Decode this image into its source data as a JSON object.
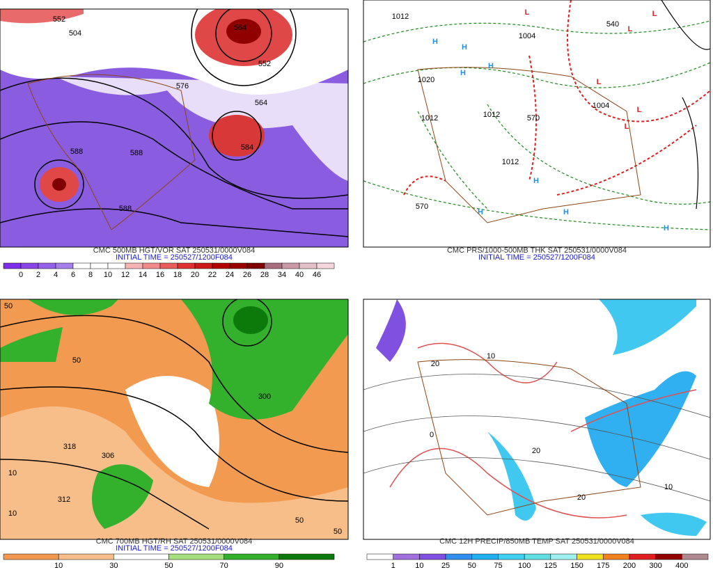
{
  "panels": [
    {
      "caption": "CMC 500MB HGT/VOR SAT 250531/0000V084",
      "initial_time": "INITIAL TIME = 250527/1200F084",
      "map_labels": [
        "552",
        "564",
        "576",
        "588",
        "588",
        "552",
        "564",
        "584",
        "588",
        "504"
      ],
      "colorbar": {
        "labels": [
          "0",
          "2",
          "4",
          "6",
          "8",
          "10",
          "12",
          "14",
          "16",
          "18",
          "20",
          "22",
          "24",
          "26",
          "28",
          "34",
          "40",
          "46"
        ],
        "colors": [
          "#7d2ee6",
          "#8a45e6",
          "#9660e8",
          "#a77fea",
          "#ffffff",
          "#ffffff",
          "#ffffff",
          "#f6b3b3",
          "#f08a8a",
          "#e85c5c",
          "#e03030",
          "#cc1a1a",
          "#b30000",
          "#990000",
          "#7f0000",
          "#a86e7e",
          "#c99aa6",
          "#e3bfc8",
          "#f5d6dc"
        ]
      }
    },
    {
      "caption": "CMC PRS/1000-500MB THK SAT 250531/0000V084",
      "initial_time": "INITIAL TIME = 250527/1200F084",
      "map_labels": [
        "H",
        "H",
        "H",
        "H",
        "H",
        "H",
        "H",
        "H",
        "L",
        "L",
        "L",
        "L",
        "L",
        "L",
        "1012",
        "1004",
        "1020",
        "1012",
        "1012",
        "1012",
        "1004",
        "570",
        "570",
        "540"
      ]
    },
    {
      "caption": "CMC 700MB HGT/RH SAT 250531/0000V084",
      "initial_time": "INITIAL TIME = 250527/1200F084",
      "map_labels": [
        "50",
        "50",
        "318",
        "312",
        "306",
        "300",
        "10",
        "10",
        "50",
        "50"
      ],
      "colorbar": {
        "labels": [
          "10",
          "30",
          "50",
          "70",
          "90"
        ],
        "colors": [
          "#f29a50",
          "#f7be8a",
          "#ffffff",
          "#a6df7e",
          "#33b02c",
          "#0b7a0b"
        ]
      }
    },
    {
      "caption": "CMC 12H PRECIP/850MB TEMP SAT 250531/0000V084",
      "map_labels": [
        "20",
        "10",
        "0",
        "20",
        "20",
        "10"
      ],
      "colorbar": {
        "labels": [
          "1",
          "10",
          "25",
          "50",
          "75",
          "100",
          "125",
          "150",
          "175",
          "200",
          "300",
          "400"
        ],
        "colors": [
          "#ffffff",
          "#a070e0",
          "#8050e0",
          "#3090f0",
          "#20b0f0",
          "#40d0f0",
          "#60e0e0",
          "#9ff0f0",
          "#f0e020",
          "#f08020",
          "#e02020",
          "#900000",
          "#b08890"
        ]
      }
    }
  ]
}
